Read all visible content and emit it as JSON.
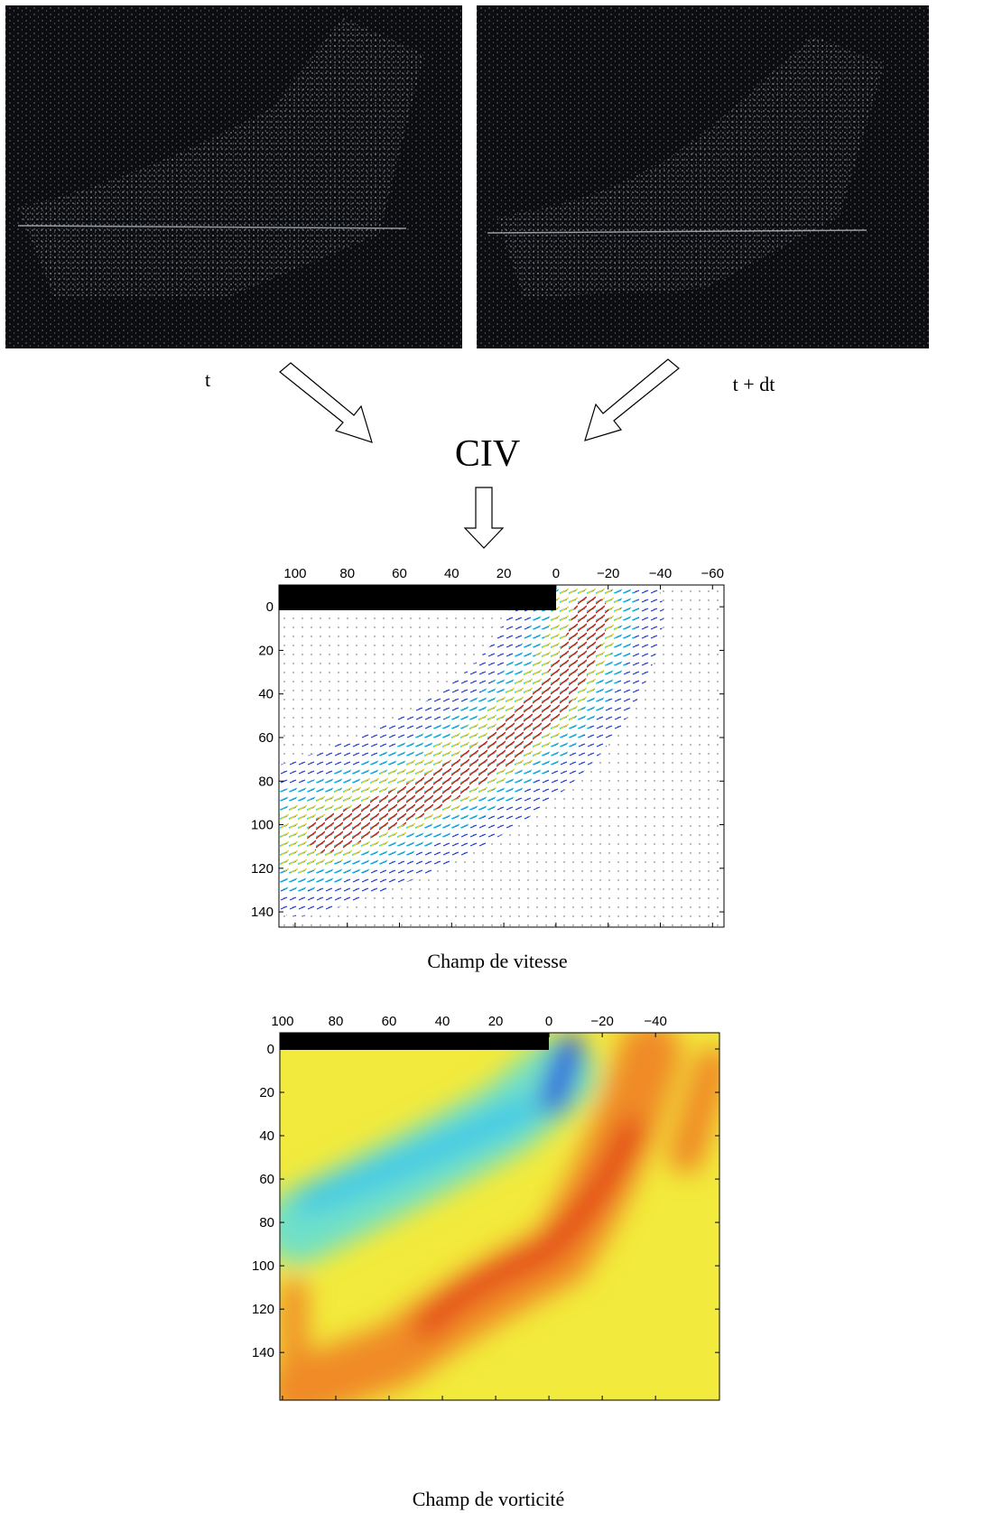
{
  "labels": {
    "t": "t",
    "t_dt": "t + dt",
    "civ": "CIV"
  },
  "velocity_plot": {
    "caption": "Champ de vitesse",
    "xlim": [
      106.2,
      -64.4
    ],
    "ylim": [
      -10,
      147
    ],
    "xticks": [
      100,
      80,
      60,
      40,
      20,
      0,
      {
        "value": -20,
        "label": "−20"
      },
      {
        "value": -40,
        "label": "−40"
      },
      {
        "value": -60,
        "label": "−60"
      }
    ],
    "yticks": [
      0,
      20,
      40,
      60,
      80,
      100,
      120,
      140
    ]
  },
  "vorticity_plot": {
    "caption": "Champ de vorticité",
    "xlim": [
      101,
      -64
    ],
    "ylim": [
      -7.5,
      162
    ],
    "xticks": [
      100,
      80,
      60,
      40,
      20,
      0,
      {
        "value": -20,
        "label": "−20"
      },
      {
        "value": -40,
        "label": "−40"
      }
    ],
    "yticks": [
      0,
      20,
      40,
      60,
      80,
      100,
      120,
      140
    ]
  }
}
